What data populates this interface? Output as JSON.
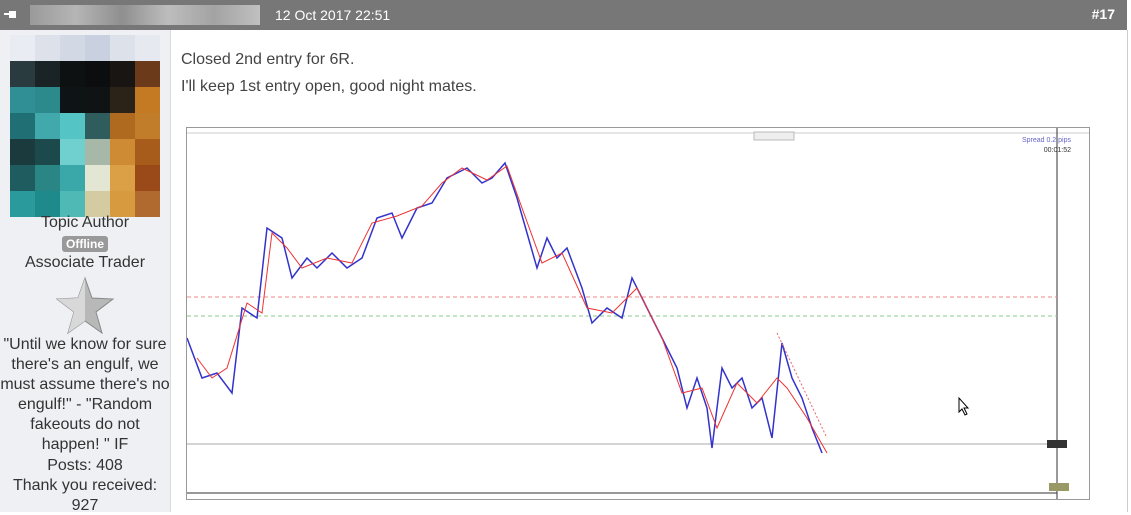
{
  "header": {
    "date": "12 Oct 2017 22:51",
    "post_number": "#17"
  },
  "author": {
    "role": "Topic Author",
    "status": "Offline",
    "rank": "Associate Trader",
    "signature": "\"Until we know for sure there's an engulf, we must assume there's no engulf!\" - \"Random fakeouts do not happen! \" IF",
    "posts": "Posts: 408",
    "thanks_label": "Thank you received:",
    "thanks_count": "927"
  },
  "post": {
    "lines": [
      "Closed 2nd entry for 6R.",
      "I'll keep 1st entry open, good night mates."
    ]
  },
  "chart_image": {
    "spread": "Spread 0.2 pips",
    "timer": "00:01:52"
  }
}
